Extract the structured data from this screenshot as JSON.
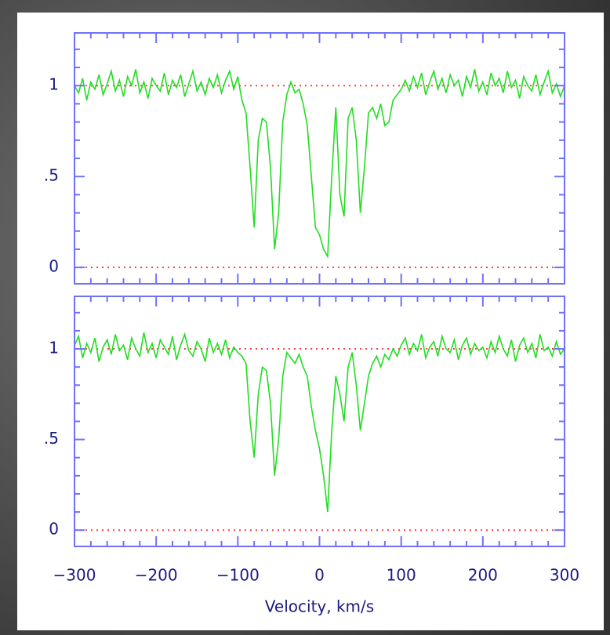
{
  "chart_data": [
    {
      "type": "line",
      "x": [
        -300,
        -295,
        -290,
        -285,
        -280,
        -275,
        -270,
        -265,
        -260,
        -255,
        -250,
        -245,
        -240,
        -235,
        -230,
        -225,
        -220,
        -215,
        -210,
        -205,
        -200,
        -195,
        -190,
        -185,
        -180,
        -175,
        -170,
        -165,
        -160,
        -155,
        -150,
        -145,
        -140,
        -135,
        -130,
        -125,
        -120,
        -115,
        -110,
        -105,
        -100,
        -95,
        -90,
        -85,
        -80,
        -75,
        -70,
        -65,
        -60,
        -55,
        -50,
        -45,
        -40,
        -35,
        -30,
        -25,
        -20,
        -15,
        -10,
        -5,
        0,
        5,
        10,
        15,
        20,
        25,
        30,
        35,
        40,
        45,
        50,
        55,
        60,
        65,
        70,
        75,
        80,
        85,
        90,
        95,
        100,
        105,
        110,
        115,
        120,
        125,
        130,
        135,
        140,
        145,
        150,
        155,
        160,
        165,
        170,
        175,
        180,
        185,
        190,
        195,
        200,
        205,
        210,
        215,
        220,
        225,
        230,
        235,
        240,
        245,
        250,
        255,
        260,
        265,
        270,
        275,
        280,
        285,
        290,
        295,
        300
      ],
      "series": [
        {
          "color": "#22dd22",
          "values": [
            1.0,
            0.96,
            1.04,
            0.92,
            1.02,
            0.98,
            1.06,
            0.95,
            1.01,
            1.08,
            0.97,
            1.03,
            0.94,
            1.05,
            1.0,
            1.09,
            0.96,
            1.02,
            0.93,
            1.04,
            1.0,
            0.97,
            1.07,
            0.95,
            1.03,
            0.99,
            1.06,
            0.94,
            1.01,
            1.08,
            0.97,
            1.02,
            0.95,
            1.04,
            0.99,
            1.06,
            0.96,
            1.03,
            1.08,
            0.98,
            1.05,
            0.92,
            0.85,
            0.55,
            0.22,
            0.7,
            0.82,
            0.8,
            0.55,
            0.1,
            0.3,
            0.8,
            0.95,
            1.02,
            0.96,
            0.98,
            0.9,
            0.78,
            0.5,
            0.22,
            0.18,
            0.1,
            0.06,
            0.5,
            0.88,
            0.4,
            0.28,
            0.82,
            0.88,
            0.7,
            0.3,
            0.55,
            0.85,
            0.88,
            0.82,
            0.9,
            0.78,
            0.8,
            0.92,
            0.95,
            0.98,
            1.03,
            0.97,
            1.05,
            0.99,
            1.07,
            0.95,
            1.02,
            1.08,
            0.98,
            1.04,
            0.96,
            1.06,
            1.0,
            1.03,
            0.94,
            1.05,
            0.99,
            1.09,
            0.97,
            1.02,
            0.95,
            1.07,
            1.0,
            1.04,
            0.96,
            1.08,
            0.99,
            1.03,
            0.93,
            1.05,
            1.0,
            0.97,
            1.06,
            0.95,
            1.02,
            1.08,
            0.96,
            1.01,
            0.94,
            1.0
          ]
        }
      ],
      "xlim": [
        -300,
        300
      ],
      "ylim": [
        -0.09,
        1.29
      ],
      "xticks": [
        -300,
        -200,
        -100,
        0,
        100,
        200,
        300
      ],
      "yticks": [
        0,
        {
          "value": 0.5,
          "label": ".5"
        },
        1
      ],
      "reference_lines": [
        1,
        0
      ],
      "reference_color": "#ff4040",
      "axis_color": "#7070ff"
    },
    {
      "type": "line",
      "x": [
        -300,
        -295,
        -290,
        -285,
        -280,
        -275,
        -270,
        -265,
        -260,
        -255,
        -250,
        -245,
        -240,
        -235,
        -230,
        -225,
        -220,
        -215,
        -210,
        -205,
        -200,
        -195,
        -190,
        -185,
        -180,
        -175,
        -170,
        -165,
        -160,
        -155,
        -150,
        -145,
        -140,
        -135,
        -130,
        -125,
        -120,
        -115,
        -110,
        -105,
        -100,
        -95,
        -90,
        -85,
        -80,
        -75,
        -70,
        -65,
        -60,
        -55,
        -50,
        -45,
        -40,
        -35,
        -30,
        -25,
        -20,
        -15,
        -10,
        -5,
        0,
        5,
        10,
        15,
        20,
        25,
        30,
        35,
        40,
        45,
        50,
        55,
        60,
        65,
        70,
        75,
        80,
        85,
        90,
        95,
        100,
        105,
        110,
        115,
        120,
        125,
        130,
        135,
        140,
        145,
        150,
        155,
        160,
        165,
        170,
        175,
        180,
        185,
        190,
        195,
        200,
        205,
        210,
        215,
        220,
        225,
        230,
        235,
        240,
        245,
        250,
        255,
        260,
        265,
        270,
        275,
        280,
        285,
        290,
        295,
        300
      ],
      "series": [
        {
          "color": "#22dd22",
          "values": [
            1.02,
            1.07,
            0.95,
            1.03,
            0.98,
            1.06,
            0.93,
            1.01,
            1.05,
            0.97,
            1.08,
            0.99,
            1.02,
            0.94,
            1.06,
            1.0,
            0.96,
            1.09,
            0.98,
            1.03,
            0.95,
            1.05,
            1.01,
            0.97,
            1.07,
            0.94,
            1.02,
            1.08,
            0.99,
            0.96,
            1.04,
            1.0,
            0.93,
            1.06,
            0.98,
            1.03,
            0.97,
            1.05,
            0.95,
            1.01,
            0.98,
            0.96,
            0.92,
            0.6,
            0.4,
            0.75,
            0.9,
            0.88,
            0.7,
            0.3,
            0.5,
            0.85,
            0.98,
            0.95,
            0.92,
            0.97,
            0.9,
            0.85,
            0.68,
            0.55,
            0.45,
            0.3,
            0.1,
            0.55,
            0.85,
            0.75,
            0.6,
            0.9,
            0.98,
            0.8,
            0.55,
            0.7,
            0.85,
            0.92,
            0.96,
            0.9,
            0.97,
            0.94,
            1.0,
            0.96,
            1.02,
            1.06,
            0.97,
            1.03,
            0.99,
            1.08,
            0.95,
            1.01,
            1.04,
            0.96,
            1.07,
            1.0,
            0.98,
            1.05,
            0.94,
            1.02,
            1.06,
            0.97,
            1.03,
            0.99,
            1.01,
            0.95,
            1.04,
            0.98,
            1.07,
            1.0,
            0.96,
            1.05,
            0.93,
            1.02,
            1.06,
            0.98,
            1.03,
            0.95,
            1.08,
            0.99,
            1.01,
            0.96,
            1.04,
            0.97,
            1.0
          ]
        }
      ],
      "xlim": [
        -300,
        300
      ],
      "ylim": [
        -0.09,
        1.29
      ],
      "xticks": [
        {
          "value": -300,
          "label": "−300"
        },
        {
          "value": -200,
          "label": "−200"
        },
        {
          "value": -100,
          "label": "−100"
        },
        0,
        100,
        200,
        300
      ],
      "yticks": [
        0,
        {
          "value": 0.5,
          "label": ".5"
        },
        1
      ],
      "xlabel": "Velocity, km/s",
      "reference_lines": [
        1,
        0
      ],
      "reference_color": "#ff4040",
      "axis_color": "#7070ff"
    }
  ]
}
